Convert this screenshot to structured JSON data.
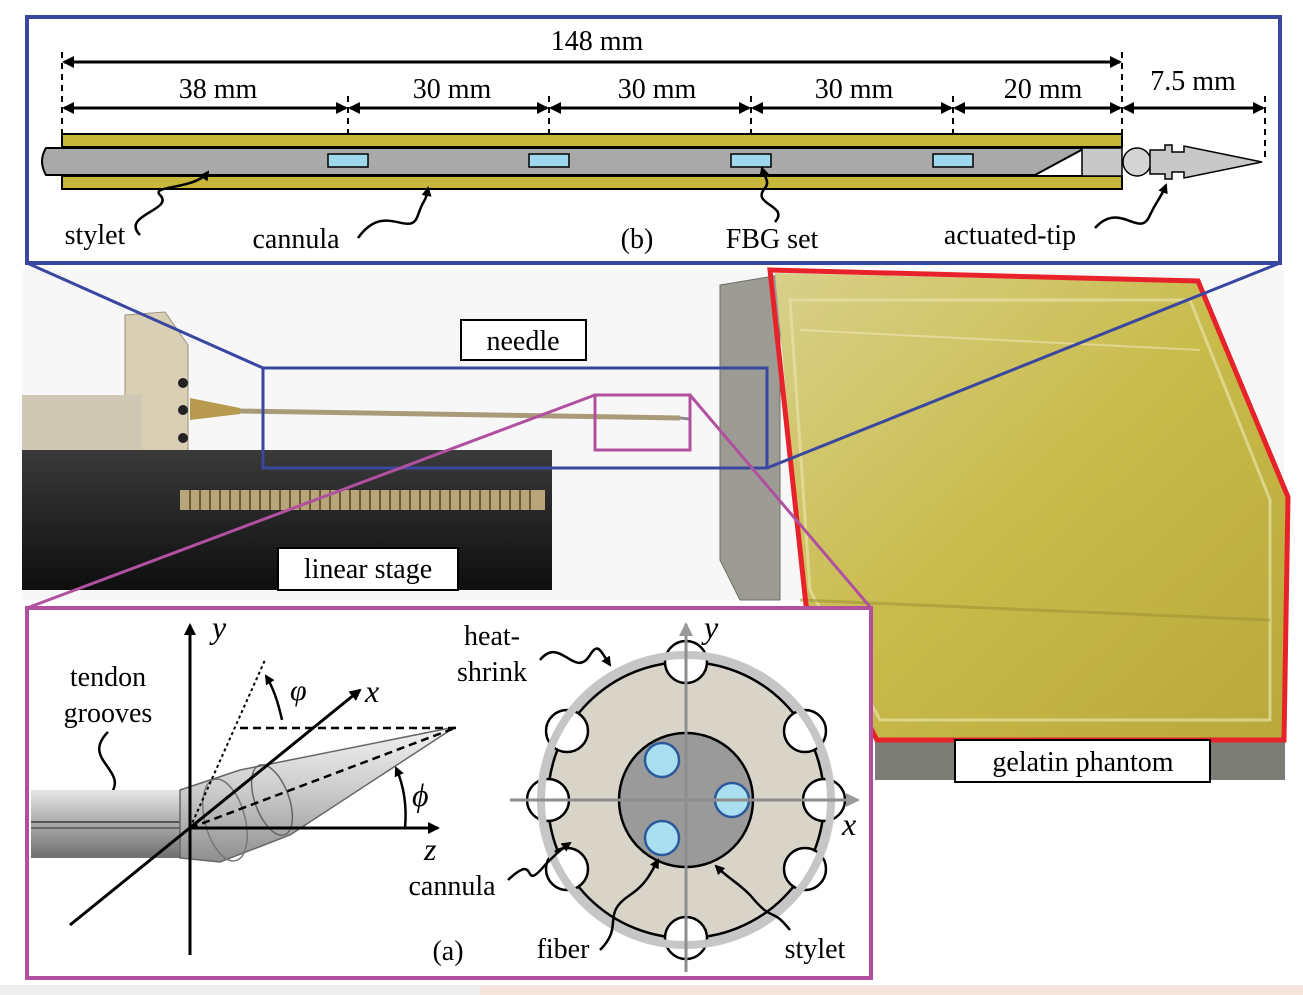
{
  "panel_b": {
    "caption": "(b)",
    "overall_length": "148 mm",
    "segments": [
      "38 mm",
      "30 mm",
      "30 mm",
      "30 mm",
      "20 mm"
    ],
    "tip_length": "7.5 mm",
    "labels": {
      "stylet": "stylet",
      "cannula": "cannula",
      "fbg_set": "FBG set",
      "actuated_tip": "actuated-tip"
    }
  },
  "photo": {
    "needle": "needle",
    "linear_stage": "linear stage",
    "gelatin_phantom": "gelatin phantom"
  },
  "panel_a": {
    "caption": "(a)",
    "tendon_grooves": "tendon grooves",
    "axes": {
      "x": "x",
      "y": "y",
      "z": "z"
    },
    "angles": {
      "varphi": "φ",
      "phi": "ϕ"
    },
    "cross_section": {
      "heat_shrink": "heat-shrink",
      "cannula": "cannula",
      "fiber": "fiber",
      "stylet": "stylet",
      "x": "x",
      "y": "y"
    }
  },
  "colors": {
    "panel_b_border": "#3a47a0",
    "panel_a_border": "#b0509f",
    "phantom_border": "#e8222a",
    "cannula_yellow": "#c6b73a",
    "fbg_blue": "#9fd8ec",
    "phantom_gel": "#c9bf4c"
  }
}
